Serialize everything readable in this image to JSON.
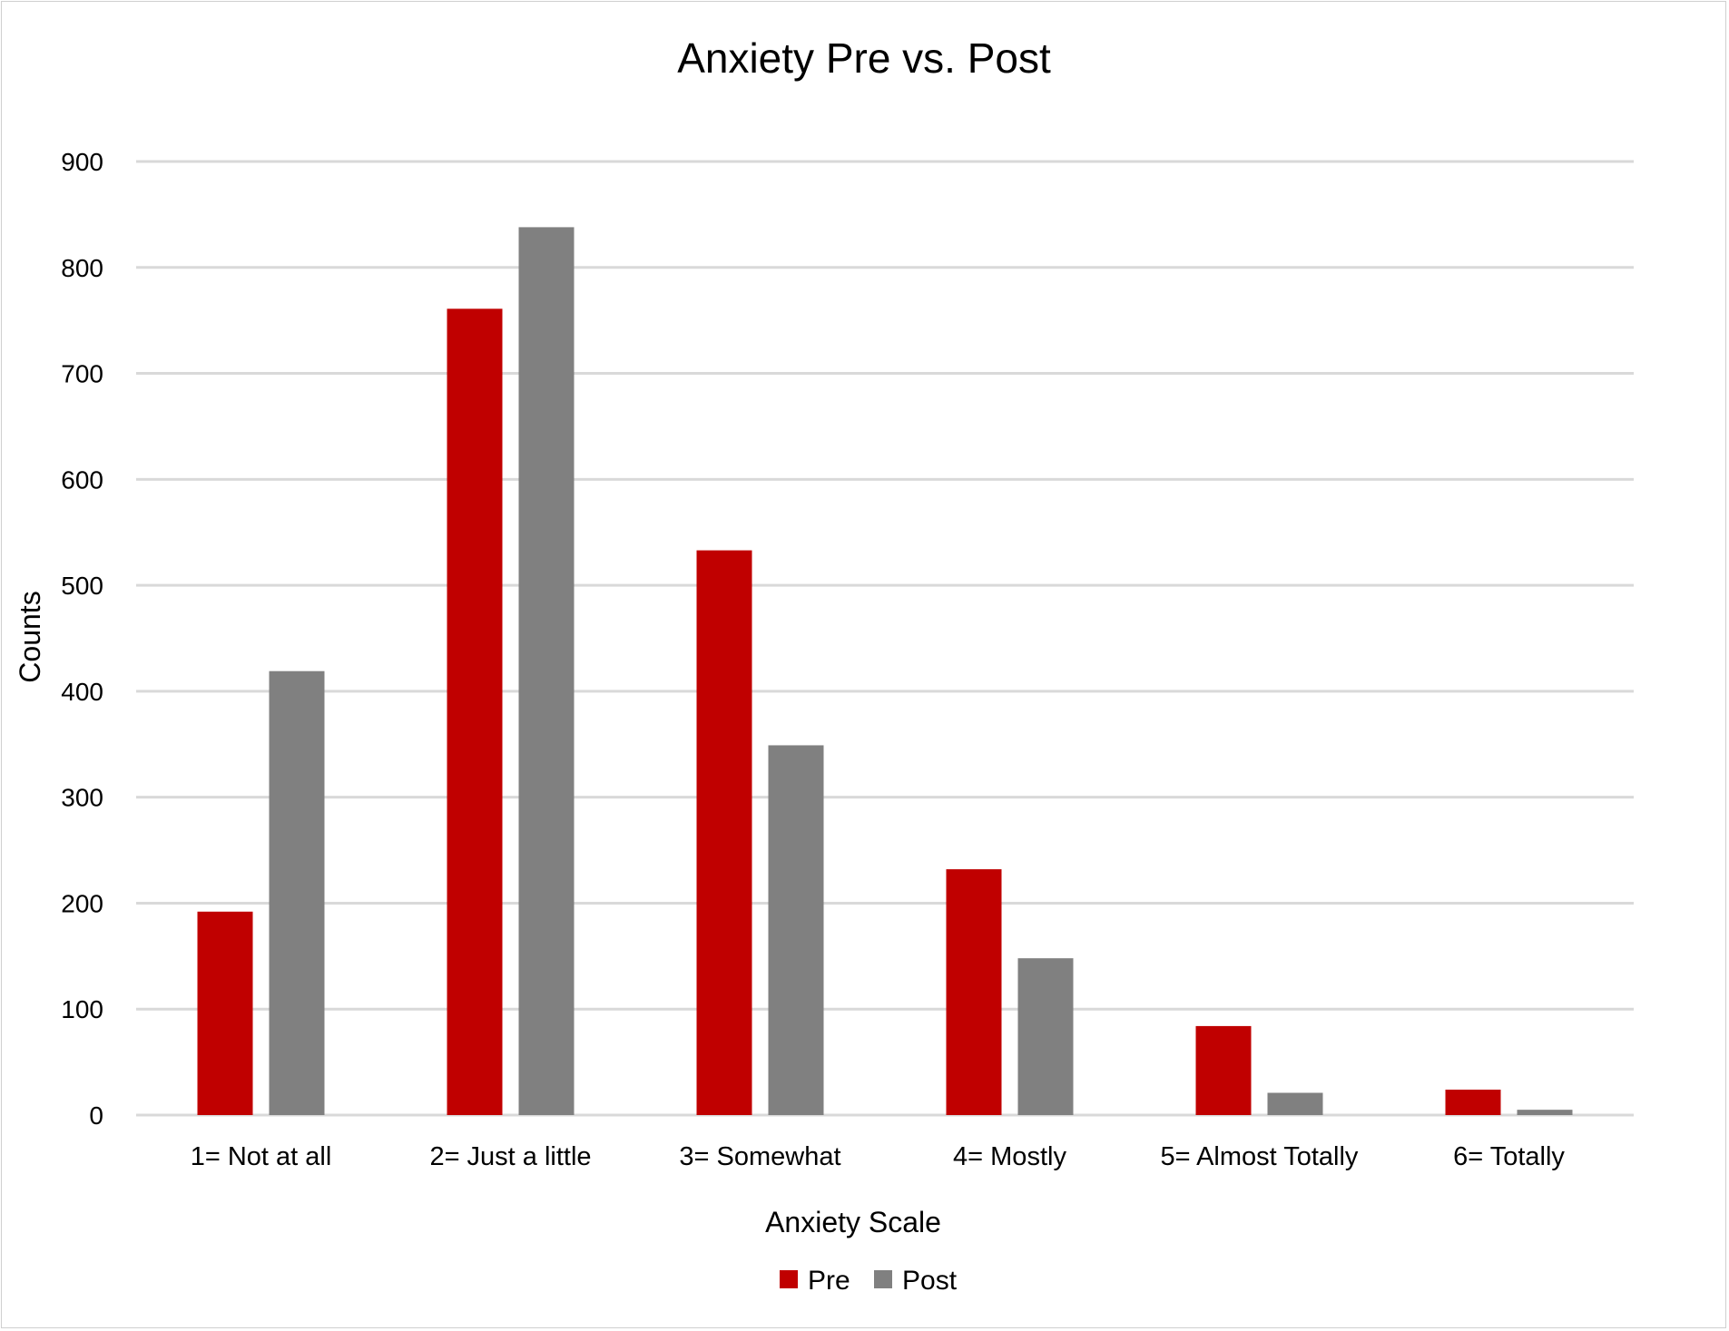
{
  "chart_data": {
    "type": "bar",
    "title": "Anxiety Pre vs. Post",
    "xlabel": "Anxiety Scale",
    "ylabel": "Counts",
    "categories": [
      "1= Not at all",
      "2= Just a little",
      "3= Somewhat",
      "4= Mostly",
      "5= Almost Totally",
      "6= Totally"
    ],
    "series": [
      {
        "name": "Pre",
        "color": "#c00000",
        "values": [
          192,
          761,
          533,
          232,
          84,
          24
        ]
      },
      {
        "name": "Post",
        "color": "#808080",
        "values": [
          419,
          838,
          349,
          148,
          21,
          5
        ]
      }
    ],
    "ylim": [
      0,
      900
    ],
    "yticks": [
      0,
      100,
      200,
      300,
      400,
      500,
      600,
      700,
      800,
      900
    ],
    "grid": true,
    "legend_position": "bottom"
  }
}
